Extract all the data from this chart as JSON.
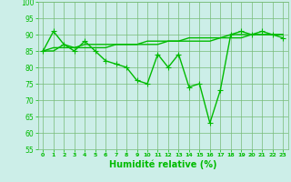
{
  "x": [
    0,
    1,
    2,
    3,
    4,
    5,
    6,
    7,
    8,
    9,
    10,
    11,
    12,
    13,
    14,
    15,
    16,
    17,
    18,
    19,
    20,
    21,
    22,
    23
  ],
  "line1": [
    85,
    91,
    87,
    85,
    88,
    85,
    82,
    81,
    80,
    76,
    75,
    84,
    80,
    84,
    74,
    75,
    63,
    73,
    90,
    91,
    90,
    91,
    90,
    89
  ],
  "line2": [
    85,
    86,
    86,
    86,
    86,
    86,
    86,
    87,
    87,
    87,
    87,
    87,
    88,
    88,
    88,
    88,
    88,
    89,
    89,
    89,
    90,
    90,
    90,
    90
  ],
  "line3": [
    85,
    85,
    87,
    86,
    87,
    87,
    87,
    87,
    87,
    87,
    88,
    88,
    88,
    88,
    89,
    89,
    89,
    89,
    90,
    90,
    90,
    90,
    90,
    90
  ],
  "line_color": "#00bb00",
  "bg_color": "#cceee8",
  "grid_color": "#77bb77",
  "xlabel": "Humidité relative (%)",
  "ylim": [
    55,
    100
  ],
  "yticks": [
    55,
    60,
    65,
    70,
    75,
    80,
    85,
    90,
    95,
    100
  ],
  "xticks": [
    0,
    1,
    2,
    3,
    4,
    5,
    6,
    7,
    8,
    9,
    10,
    11,
    12,
    13,
    14,
    15,
    16,
    17,
    18,
    19,
    20,
    21,
    22,
    23
  ],
  "linewidth": 1.0,
  "markersize": 4
}
